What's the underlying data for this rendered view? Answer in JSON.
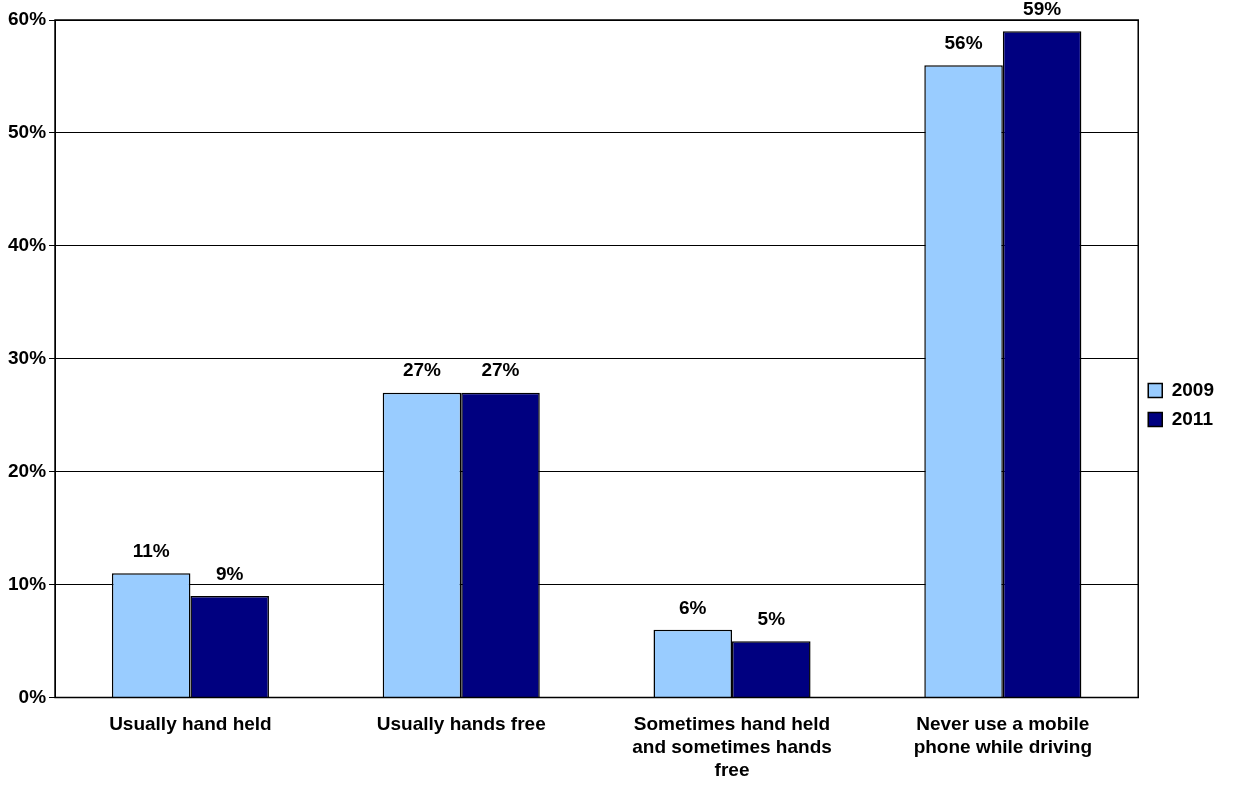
{
  "chart_data": {
    "type": "bar",
    "categories": [
      "Usually hand held",
      "Usually hands free",
      "Sometimes hand held and sometimes hands free",
      "Never use a mobile phone while driving"
    ],
    "series": [
      {
        "name": "2009",
        "color": "#99ccff",
        "values": [
          11,
          27,
          6,
          56
        ],
        "value_labels": [
          "11%",
          "27%",
          "6%",
          "56%"
        ]
      },
      {
        "name": "2011",
        "color": "#000080",
        "values": [
          9,
          27,
          5,
          59
        ],
        "value_labels": [
          "9%",
          "27%",
          "5%",
          "59%"
        ]
      }
    ],
    "ylim": [
      0,
      60
    ],
    "yticks": [
      {
        "value": 0,
        "label": "0%"
      },
      {
        "value": 10,
        "label": "10%"
      },
      {
        "value": 20,
        "label": "20%"
      },
      {
        "value": 30,
        "label": "30%"
      },
      {
        "value": 40,
        "label": "40%"
      },
      {
        "value": 50,
        "label": "50%"
      },
      {
        "value": 60,
        "label": "60%"
      }
    ],
    "grid": "y",
    "legend": "right"
  }
}
